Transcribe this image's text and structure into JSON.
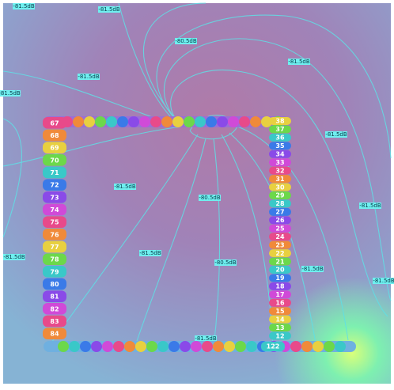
{
  "contour_labels": [
    "-81.5dB",
    "-81.5dB",
    "-80.5dB",
    "-81.5dB",
    "-81.5dB",
    "-81.5dB",
    "-81.5dB",
    "-81.5dB",
    "-80.5dB",
    "-81.5dB",
    "-81.5dB",
    "-80.5dB",
    "-81.5dB",
    "-81.5dB",
    "-81.5dB",
    "-81.5dB"
  ],
  "left_markers": [
    "67",
    "68",
    "69",
    "70",
    "71",
    "72",
    "73",
    "74",
    "75",
    "76",
    "77",
    "78",
    "79",
    "80",
    "81",
    "82",
    "83",
    "84"
  ],
  "right_markers": [
    "38",
    "37",
    "36",
    "35",
    "34",
    "33",
    "32",
    "31",
    "30",
    "29",
    "28",
    "27",
    "26",
    "25",
    "24",
    "23",
    "22",
    "21",
    "20",
    "19",
    "18",
    "17",
    "16",
    "15",
    "14",
    "13",
    "12"
  ],
  "bottom_label": "122"
}
